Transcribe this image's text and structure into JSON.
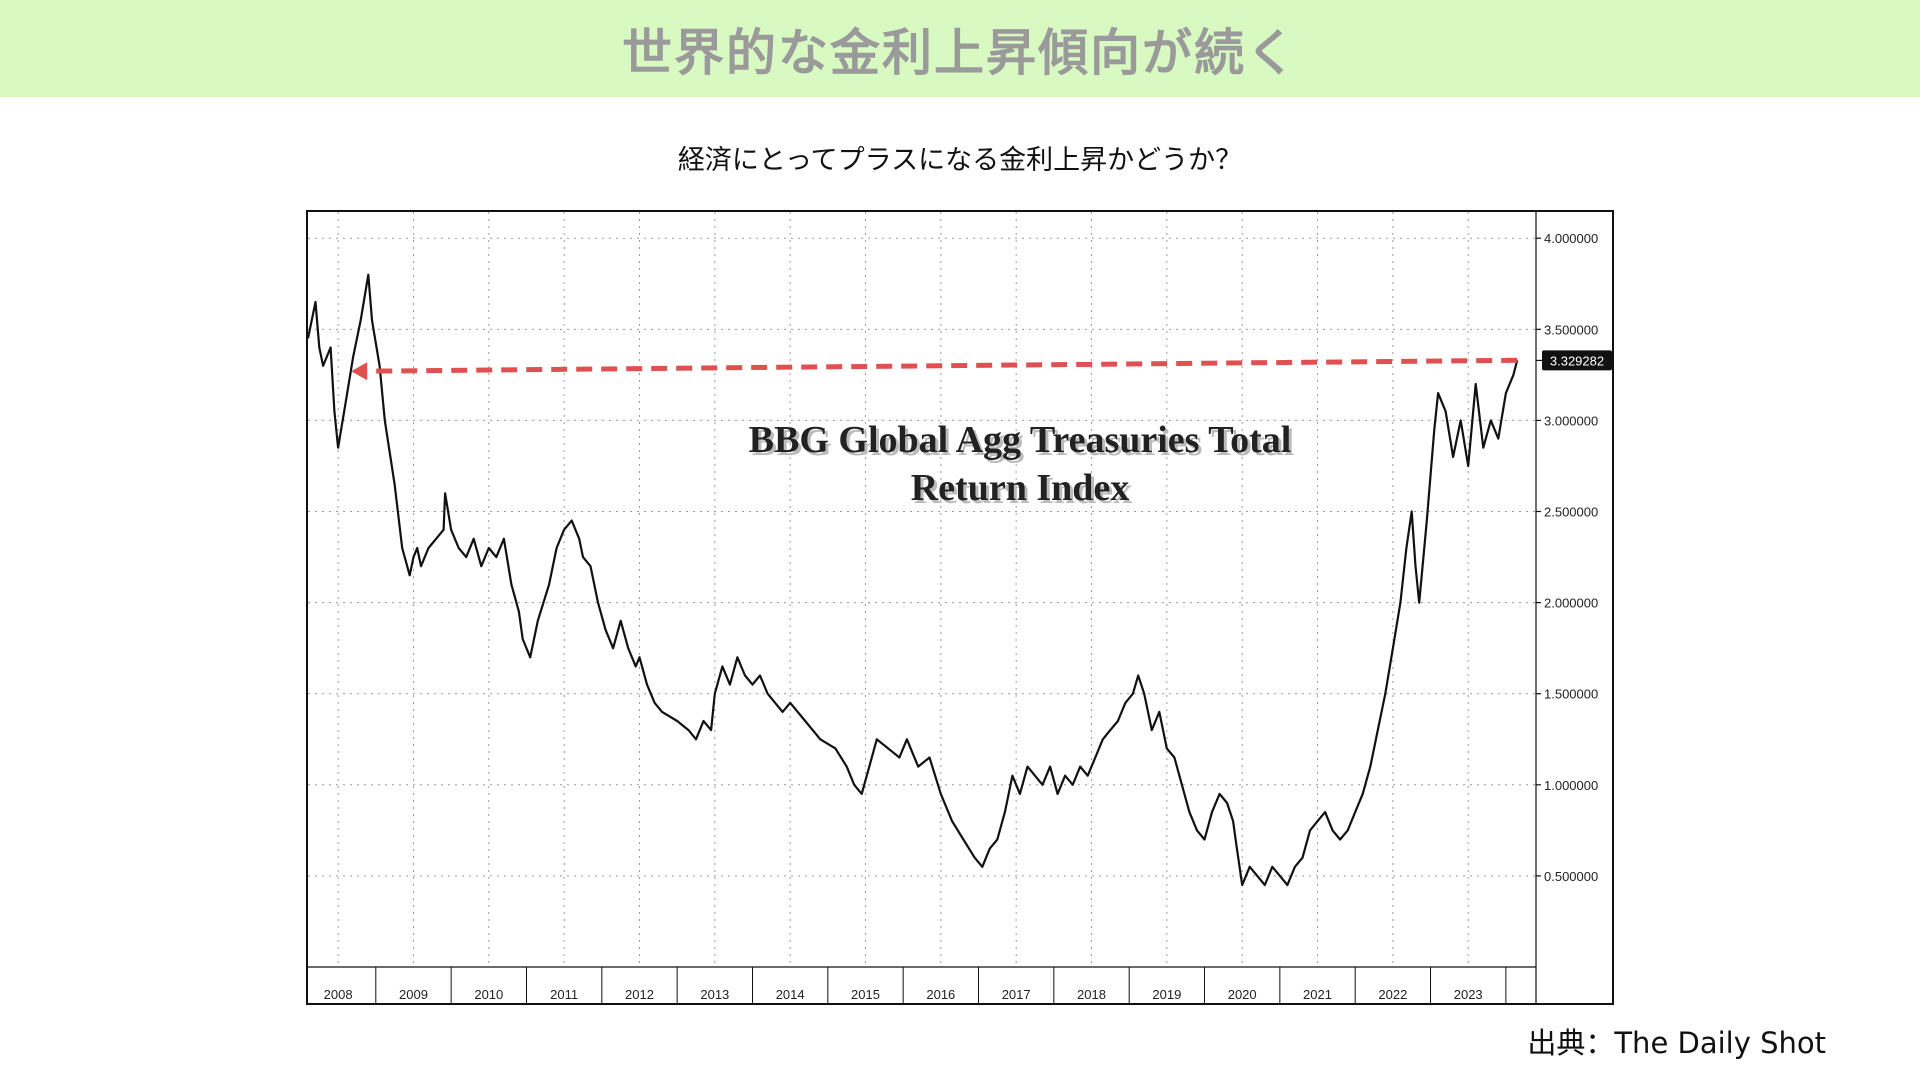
{
  "banner": {
    "title": "世界的な金利上昇傾向が続く",
    "bg": "#d8f9c2"
  },
  "subtitle": "経済にとってプラスになる金利上昇かどうか？",
  "source": "出典：The Daily Shot",
  "chart_data": {
    "type": "line",
    "title_line1": "BBG Global Agg Treasuries Total",
    "title_line2": "Return Index",
    "ylim": [
      0,
      4.1
    ],
    "yticks": [
      0.5,
      1.0,
      1.5,
      2.0,
      2.5,
      3.0,
      3.5,
      4.0
    ],
    "ytick_labels": [
      "0.500000",
      "1.000000",
      "1.500000",
      "2.000000",
      "2.500000",
      "3.000000",
      "3.500000",
      "4.000000"
    ],
    "xlim": [
      2007.6,
      2023.9
    ],
    "year_labels": [
      "2008",
      "2009",
      "2010",
      "2011",
      "2012",
      "2013",
      "2014",
      "2015",
      "2016",
      "2017",
      "2018",
      "2019",
      "2020",
      "2021",
      "2022",
      "2023"
    ],
    "last_value": 3.329282,
    "last_value_label": "3.329282",
    "grid": true,
    "line_color": "#111111",
    "annotation": {
      "type": "dashed-arrow",
      "color": "#e05050",
      "from": [
        2023.65,
        3.33
      ],
      "to": [
        2008.2,
        3.27
      ]
    },
    "series": [
      {
        "x": [
          2007.6,
          2007.7,
          2007.75,
          2007.8,
          2007.9,
          2007.95,
          2008.0,
          2008.1,
          2008.2,
          2008.3,
          2008.4,
          2008.45,
          2008.55,
          2008.62,
          2008.75,
          2008.85,
          2008.95,
          2009.0,
          2009.05,
          2009.1,
          2009.2,
          2009.3,
          2009.4,
          2009.42,
          2009.5,
          2009.6,
          2009.7,
          2009.8,
          2009.9,
          2010.0,
          2010.1,
          2010.2,
          2010.3,
          2010.4,
          2010.45,
          2010.55,
          2010.65,
          2010.8,
          2010.9,
          2011.0,
          2011.1,
          2011.2,
          2011.25,
          2011.35,
          2011.45,
          2011.55,
          2011.65,
          2011.75,
          2011.85,
          2011.95,
          2012.0,
          2012.1,
          2012.2,
          2012.3,
          2012.5,
          2012.65,
          2012.75,
          2012.85,
          2012.95,
          2013.0,
          2013.1,
          2013.2,
          2013.3,
          2013.4,
          2013.5,
          2013.6,
          2013.7,
          2013.8,
          2013.9,
          2014.0,
          2014.2,
          2014.4,
          2014.6,
          2014.75,
          2014.85,
          2014.95,
          2015.05,
          2015.15,
          2015.3,
          2015.45,
          2015.55,
          2015.7,
          2015.85,
          2016.0,
          2016.15,
          2016.3,
          2016.45,
          2016.55,
          2016.65,
          2016.75,
          2016.85,
          2016.95,
          2017.05,
          2017.15,
          2017.25,
          2017.35,
          2017.45,
          2017.55,
          2017.65,
          2017.75,
          2017.85,
          2017.95,
          2018.05,
          2018.15,
          2018.25,
          2018.35,
          2018.45,
          2018.55,
          2018.62,
          2018.7,
          2018.8,
          2018.9,
          2019.0,
          2019.1,
          2019.2,
          2019.3,
          2019.4,
          2019.5,
          2019.6,
          2019.7,
          2019.8,
          2019.88,
          2019.93,
          2020.0,
          2020.1,
          2020.2,
          2020.3,
          2020.4,
          2020.5,
          2020.6,
          2020.7,
          2020.8,
          2020.9,
          2021.0,
          2021.1,
          2021.2,
          2021.3,
          2021.4,
          2021.5,
          2021.6,
          2021.7,
          2021.8,
          2021.9,
          2022.0,
          2022.1,
          2022.18,
          2022.25,
          2022.3,
          2022.35,
          2022.45,
          2022.55,
          2022.6,
          2022.7,
          2022.8,
          2022.9,
          2023.0,
          2023.1,
          2023.2,
          2023.3,
          2023.4,
          2023.5,
          2023.6,
          2023.65
        ],
        "y": [
          3.45,
          3.65,
          3.4,
          3.3,
          3.4,
          3.05,
          2.85,
          3.1,
          3.35,
          3.55,
          3.8,
          3.55,
          3.3,
          3.0,
          2.65,
          2.3,
          2.15,
          2.25,
          2.3,
          2.2,
          2.3,
          2.35,
          2.4,
          2.6,
          2.4,
          2.3,
          2.25,
          2.35,
          2.2,
          2.3,
          2.25,
          2.35,
          2.1,
          1.95,
          1.8,
          1.7,
          1.9,
          2.1,
          2.3,
          2.4,
          2.45,
          2.35,
          2.25,
          2.2,
          2.0,
          1.85,
          1.75,
          1.9,
          1.75,
          1.65,
          1.7,
          1.55,
          1.45,
          1.4,
          1.35,
          1.3,
          1.25,
          1.35,
          1.3,
          1.5,
          1.65,
          1.55,
          1.7,
          1.6,
          1.55,
          1.6,
          1.5,
          1.45,
          1.4,
          1.45,
          1.35,
          1.25,
          1.2,
          1.1,
          1.0,
          0.95,
          1.1,
          1.25,
          1.2,
          1.15,
          1.25,
          1.1,
          1.15,
          0.95,
          0.8,
          0.7,
          0.6,
          0.55,
          0.65,
          0.7,
          0.85,
          1.05,
          0.95,
          1.1,
          1.05,
          1.0,
          1.1,
          0.95,
          1.05,
          1.0,
          1.1,
          1.05,
          1.15,
          1.25,
          1.3,
          1.35,
          1.45,
          1.5,
          1.6,
          1.5,
          1.3,
          1.4,
          1.2,
          1.15,
          1.0,
          0.85,
          0.75,
          0.7,
          0.85,
          0.95,
          0.9,
          0.8,
          0.65,
          0.45,
          0.55,
          0.5,
          0.45,
          0.55,
          0.5,
          0.45,
          0.55,
          0.6,
          0.75,
          0.8,
          0.85,
          0.75,
          0.7,
          0.75,
          0.85,
          0.95,
          1.1,
          1.3,
          1.5,
          1.75,
          2.0,
          2.3,
          2.5,
          2.2,
          2.0,
          2.45,
          2.95,
          3.15,
          3.05,
          2.8,
          3.0,
          2.75,
          3.2,
          2.85,
          3.0,
          2.9,
          3.15,
          3.25,
          3.33
        ]
      }
    ]
  }
}
